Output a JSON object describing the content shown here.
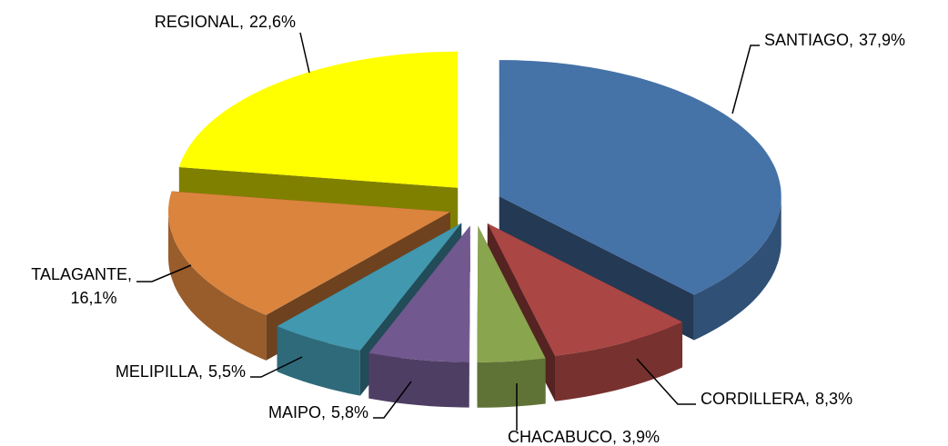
{
  "chart_data": {
    "type": "pie3d",
    "categories": [
      "SANTIAGO,",
      "CORDILLERA,",
      "CHACABUCO,",
      "MAIPO,",
      "MELIPILLA,",
      "TALAGANTE,",
      "REGIONAL,"
    ],
    "values": [
      37.9,
      8.3,
      3.9,
      5.8,
      5.5,
      16.1,
      22.6
    ],
    "value_labels": [
      "37,9%",
      "8,3%",
      "3,9%",
      "5,8%",
      "5,5%",
      "16,1%",
      "22,6%"
    ],
    "colors": [
      "#4572a7",
      "#aa4643",
      "#89a54e",
      "#71588f",
      "#4198af",
      "#db843d",
      "#ffff00"
    ]
  }
}
